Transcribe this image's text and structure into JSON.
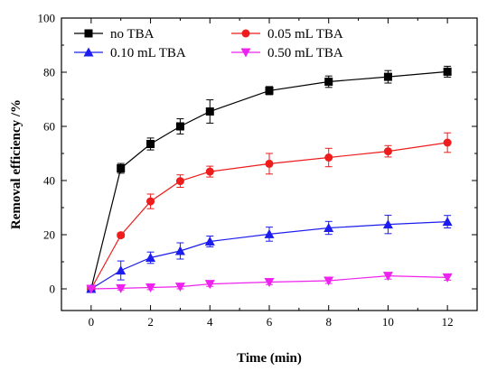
{
  "chart_data": {
    "type": "line",
    "xlabel": "Time (min)",
    "ylabel": "Removal efficiency /%",
    "xlim": [
      -1,
      13
    ],
    "ylim": [
      -8,
      100
    ],
    "x_ticks": [
      0,
      2,
      4,
      6,
      8,
      10,
      12
    ],
    "y_ticks": [
      0,
      20,
      40,
      60,
      80,
      100
    ],
    "legend_position": "top-left",
    "grid": false,
    "series": [
      {
        "name": "no TBA",
        "color": "#000000",
        "marker": "square",
        "x": [
          0,
          1,
          2,
          3,
          4,
          6,
          8,
          10,
          12
        ],
        "y": [
          0,
          44.5,
          53.5,
          60,
          65.5,
          73.2,
          76.5,
          78.3,
          80.2
        ],
        "err": [
          0,
          1.8,
          2.2,
          2.8,
          4.3,
          1.5,
          2.1,
          2.3,
          2.0
        ]
      },
      {
        "name": "0.05 mL TBA",
        "color": "#ee1c1c",
        "marker": "circle",
        "x": [
          0,
          1,
          2,
          3,
          4,
          6,
          8,
          10,
          12
        ],
        "y": [
          0,
          19.8,
          32.3,
          39.8,
          43.3,
          46.2,
          48.5,
          50.8,
          54.0
        ],
        "err": [
          0,
          0.8,
          2.7,
          2.3,
          2.0,
          3.8,
          3.4,
          2.1,
          3.6
        ]
      },
      {
        "name": "0.10 mL TBA",
        "color": "#1c1cee",
        "marker": "triangle-up",
        "x": [
          0,
          1,
          2,
          3,
          4,
          6,
          8,
          10,
          12
        ],
        "y": [
          0,
          6.8,
          11.5,
          14.0,
          17.5,
          20.2,
          22.5,
          23.8,
          24.8
        ],
        "err": [
          0,
          3.5,
          2.1,
          3.0,
          2.0,
          2.6,
          2.4,
          3.4,
          2.3
        ]
      },
      {
        "name": "0.50 mL TBA",
        "color": "#ee22ee",
        "marker": "triangle-down",
        "x": [
          0,
          1,
          2,
          3,
          4,
          6,
          8,
          10,
          12
        ],
        "y": [
          0,
          0.2,
          0.5,
          0.8,
          1.8,
          2.5,
          3.0,
          4.8,
          4.2
        ],
        "err": [
          0,
          0.6,
          0.8,
          0.8,
          0.9,
          0.9,
          1.0,
          1.2,
          1.0
        ]
      }
    ]
  }
}
